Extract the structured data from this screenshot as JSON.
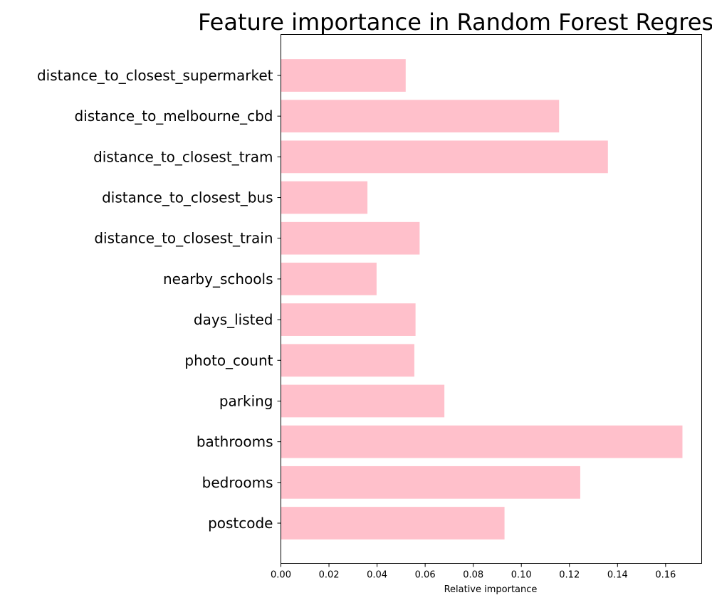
{
  "chart_data": {
    "type": "bar",
    "orientation": "horizontal",
    "title": "Feature importance in Random Forest Regressor",
    "xlabel": "Relative importance",
    "ylabel": "",
    "categories": [
      "postcode",
      "bedrooms",
      "bathrooms",
      "parking",
      "photo_count",
      "days_listed",
      "nearby_schools",
      "distance_to_closest_train",
      "distance_to_closest_bus",
      "distance_to_closest_tram",
      "distance_to_melbourne_cbd",
      "distance_to_closest_supermarket"
    ],
    "values": [
      0.093,
      0.1245,
      0.167,
      0.068,
      0.0555,
      0.056,
      0.0398,
      0.0577,
      0.036,
      0.136,
      0.1157,
      0.0519
    ],
    "xlim": [
      0,
      0.175
    ],
    "xticks": [
      "0.00",
      "0.02",
      "0.04",
      "0.06",
      "0.08",
      "0.10",
      "0.12",
      "0.14",
      "0.16"
    ],
    "bar_color": "#ffc0cb",
    "grid": false,
    "legend": "none"
  }
}
